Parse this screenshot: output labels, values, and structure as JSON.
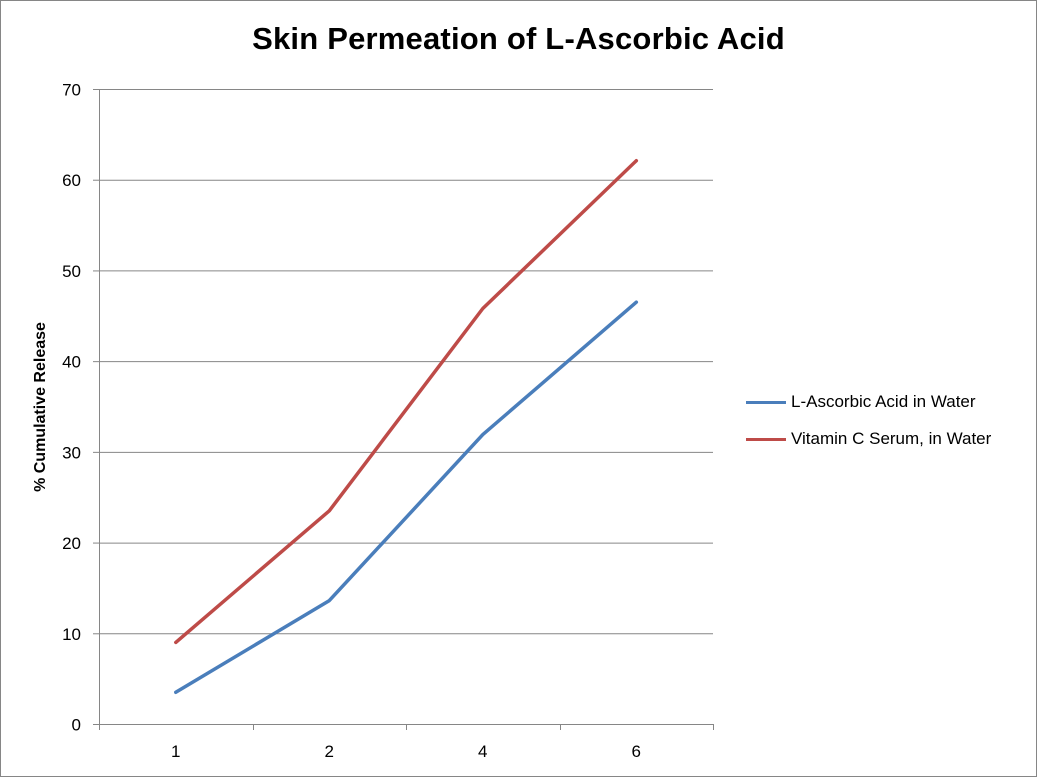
{
  "chart_data": {
    "type": "line",
    "title": "Skin Permeation of L-Ascorbic Acid",
    "xlabel": "",
    "ylabel": "% Cumulative Release",
    "categories": [
      "1",
      "2",
      "4",
      "6"
    ],
    "ylim": [
      0,
      70
    ],
    "yticks": [
      0,
      10,
      20,
      30,
      40,
      50,
      60,
      70
    ],
    "grid": "horizontal",
    "legend_position": "right",
    "series": [
      {
        "name": "L-Ascorbic Acid in Water",
        "values": [
          3.5,
          13.6,
          31.9,
          46.5
        ],
        "color": "#4a7ebb"
      },
      {
        "name": "Vitamin C Serum, in Water",
        "values": [
          9.0,
          23.5,
          45.8,
          62.1
        ],
        "color": "#be4b48"
      }
    ]
  }
}
